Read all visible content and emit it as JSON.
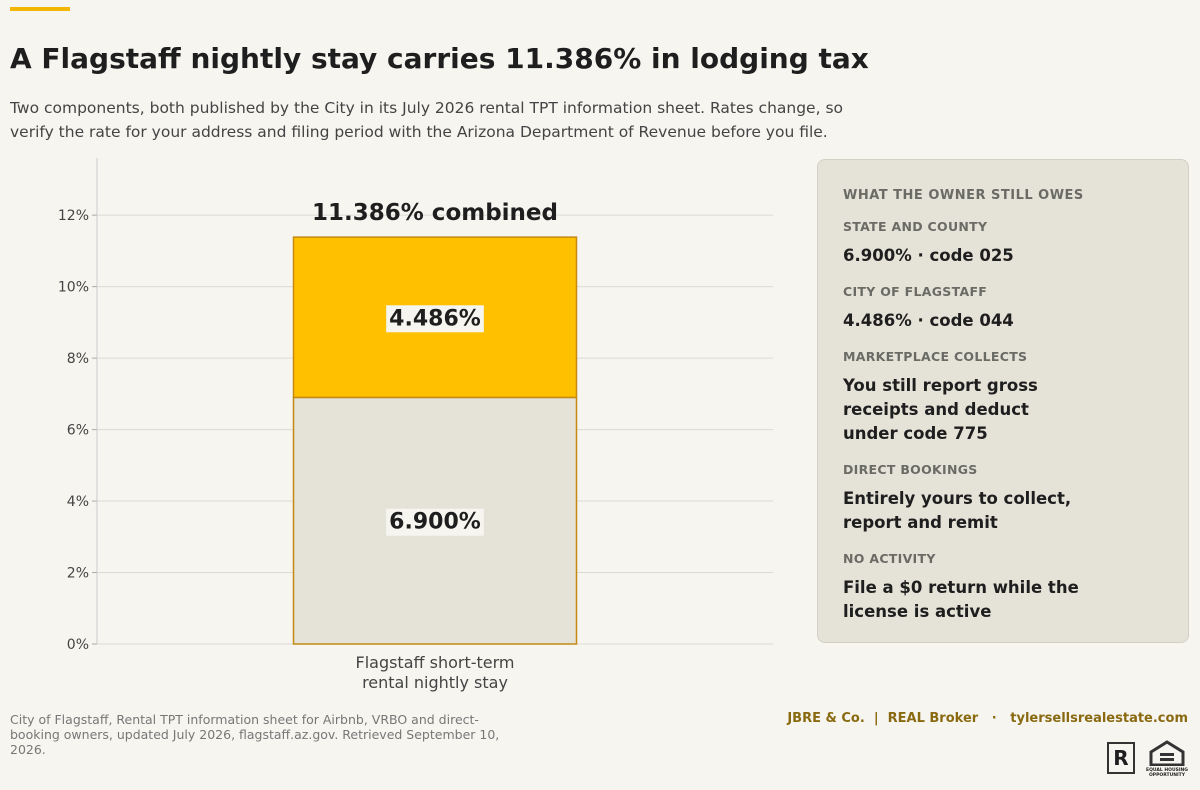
{
  "header": {
    "title": "A Flagstaff nightly stay carries 11.386% in lodging tax",
    "subtitle": "Two components, both published by the City in its July 2026 rental TPT information sheet. Rates change, so verify the rate for your address and filing period with the Arizona Department of Revenue before you file."
  },
  "chart_data": {
    "type": "stacked-bar",
    "categories": [
      "Flagstaff short-term rental nightly stay"
    ],
    "series": [
      {
        "color": "#e5e2d8",
        "values": [
          6.9
        ],
        "value_labels": [
          "6.900%"
        ]
      },
      {
        "color": "#ffc000",
        "values": [
          4.486
        ],
        "value_labels": [
          "4.486%"
        ]
      }
    ],
    "annotation": "11.386% combined",
    "edge_color": "#c48a12",
    "ylim": [
      0,
      13.6
    ],
    "yticks": [
      {
        "value": 0,
        "label": "0%"
      },
      {
        "value": 2,
        "label": "2%"
      },
      {
        "value": 4,
        "label": "4%"
      },
      {
        "value": 6,
        "label": "6%"
      },
      {
        "value": 8,
        "label": "8%"
      },
      {
        "value": 10,
        "label": "10%"
      },
      {
        "value": 12,
        "label": "12%"
      }
    ],
    "grid": true
  },
  "panel": {
    "title": "WHAT THE OWNER STILL OWES",
    "items": [
      {
        "label": "STATE AND COUNTY",
        "text": "6.900%  ·  code 025"
      },
      {
        "label": "CITY OF FLAGSTAFF",
        "text": "4.486%  ·  code 044"
      },
      {
        "label": "MARKETPLACE COLLECTS",
        "text": "You still report gross receipts and deduct under code 775"
      },
      {
        "label": "DIRECT BOOKINGS",
        "text": "Entirely yours to collect, report and remit"
      },
      {
        "label": "NO ACTIVITY",
        "text": "File a $0 return while the license is active"
      }
    ]
  },
  "footer": {
    "source": "City of Flagstaff, Rental TPT information sheet for Airbnb, VRBO and direct-booking owners, updated July 2026, flagstaff.az.gov. Retrieved September 10, 2026.",
    "brand": "JBRE & Co.  |  REAL Broker   ·   tylersellsrealestate.com",
    "logo_left": "R",
    "logo_right": "EQUAL HOUSING OPPORTUNITY"
  }
}
